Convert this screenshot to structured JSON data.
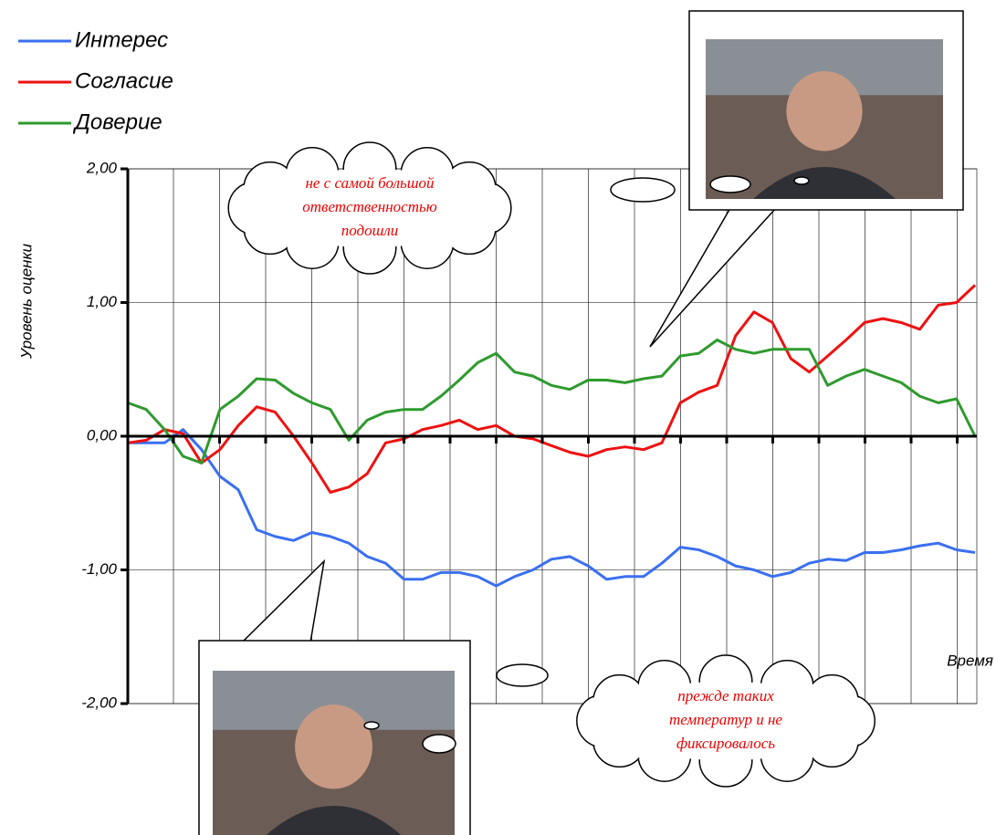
{
  "chart_data": {
    "type": "line",
    "y_label": "Уровень оценки",
    "x_label": "Время",
    "ylim": [
      -2,
      2
    ],
    "yticks": [
      {
        "value": -2,
        "label": "-2,00"
      },
      {
        "value": -1,
        "label": "-1,00"
      },
      {
        "value": 0,
        "label": "0,00"
      },
      {
        "value": 1,
        "label": "1,00"
      },
      {
        "value": 2,
        "label": "2,00"
      }
    ],
    "grid": true,
    "legend": "top-left",
    "series": [
      {
        "name": "Интерес",
        "color": "#3a6ff0",
        "values": [
          -0.05,
          -0.05,
          -0.05,
          0.05,
          -0.1,
          -0.3,
          -0.4,
          -0.7,
          -0.75,
          -0.78,
          -0.72,
          -0.75,
          -0.8,
          -0.9,
          -0.95,
          -1.07,
          -1.07,
          -1.02,
          -1.02,
          -1.05,
          -1.12,
          -1.05,
          -1.0,
          -0.92,
          -0.9,
          -0.97,
          -1.07,
          -1.05,
          -1.05,
          -0.95,
          -0.83,
          -0.85,
          -0.9,
          -0.97,
          -1.0,
          -1.05,
          -1.02,
          -0.95,
          -0.92,
          -0.93,
          -0.87,
          -0.87,
          -0.85,
          -0.82,
          -0.8,
          -0.85,
          -0.87
        ]
      },
      {
        "name": "Согласие",
        "color": "#ee1111",
        "values": [
          -0.05,
          -0.03,
          0.05,
          0.02,
          -0.2,
          -0.1,
          0.08,
          0.22,
          0.18,
          0.0,
          -0.2,
          -0.42,
          -0.38,
          -0.28,
          -0.05,
          -0.02,
          0.05,
          0.08,
          0.12,
          0.05,
          0.08,
          0.0,
          -0.02,
          -0.07,
          -0.12,
          -0.15,
          -0.1,
          -0.08,
          -0.1,
          -0.05,
          0.25,
          0.33,
          0.38,
          0.75,
          0.93,
          0.85,
          0.58,
          0.48,
          0.6,
          0.72,
          0.85,
          0.88,
          0.85,
          0.8,
          0.98,
          1.0,
          1.13
        ]
      },
      {
        "name": "Доверие",
        "color": "#2e9a2e",
        "values": [
          0.25,
          0.2,
          0.05,
          -0.15,
          -0.2,
          0.2,
          0.3,
          0.43,
          0.42,
          0.32,
          0.25,
          0.2,
          -0.03,
          0.12,
          0.18,
          0.2,
          0.2,
          0.3,
          0.42,
          0.55,
          0.62,
          0.48,
          0.45,
          0.38,
          0.35,
          0.42,
          0.42,
          0.4,
          0.43,
          0.45,
          0.6,
          0.62,
          0.72,
          0.65,
          0.62,
          0.65,
          0.65,
          0.65,
          0.38,
          0.45,
          0.5,
          0.45,
          0.4,
          0.3,
          0.25,
          0.28,
          0.0
        ]
      }
    ],
    "annotations": [
      {
        "lines": [
          "не с самой большой",
          "ответственностью",
          "подошли"
        ]
      },
      {
        "lines": [
          "прежде таких",
          "температур и не",
          "фиксировалось"
        ]
      }
    ]
  }
}
